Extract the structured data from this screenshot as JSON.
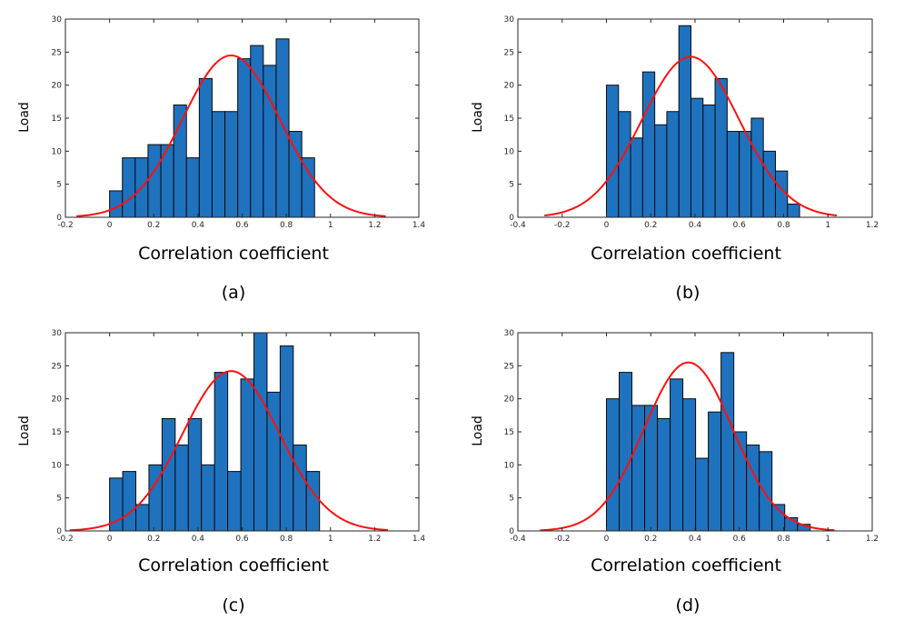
{
  "style": {
    "bar_color": "#1f72be",
    "bar_edge": "#0a0a0a",
    "curve_color": "#ff1010",
    "axis_color": "#262626"
  },
  "chart_data": [
    {
      "type": "bar",
      "panel_label": "(a)",
      "xlabel": "Correlation coefficient",
      "ylabel": "Load",
      "xlim": [
        -0.2,
        1.4
      ],
      "ylim": [
        0,
        30
      ],
      "xticks": [
        -0.2,
        0,
        0.2,
        0.4,
        0.6,
        0.8,
        1,
        1.2,
        1.4
      ],
      "yticks": [
        0,
        5,
        10,
        15,
        20,
        25,
        30
      ],
      "bin_start": 0.0,
      "bin_width": 0.058,
      "values": [
        4,
        9,
        9,
        11,
        11,
        17,
        9,
        21,
        16,
        16,
        24,
        26,
        23,
        27,
        13,
        9
      ],
      "fit": {
        "type": "normal",
        "mean": 0.55,
        "std": 0.22,
        "peak": 24.5,
        "xrange": [
          -0.15,
          1.25
        ]
      }
    },
    {
      "type": "bar",
      "panel_label": "(b)",
      "xlabel": "Correlation coefficient",
      "ylabel": "Load",
      "xlim": [
        -0.4,
        1.2
      ],
      "ylim": [
        0,
        30
      ],
      "xticks": [
        -0.4,
        -0.2,
        0,
        0.2,
        0.4,
        0.6,
        0.8,
        1,
        1.2
      ],
      "yticks": [
        0,
        5,
        10,
        15,
        20,
        25,
        30
      ],
      "bin_start": 0.0,
      "bin_width": 0.0545,
      "values": [
        20,
        16,
        12,
        22,
        14,
        16,
        29,
        18,
        17,
        21,
        13,
        13,
        15,
        10,
        7,
        2
      ],
      "fit": {
        "type": "normal",
        "mean": 0.38,
        "std": 0.22,
        "peak": 24.3,
        "xrange": [
          -0.28,
          1.04
        ]
      }
    },
    {
      "type": "bar",
      "panel_label": "(c)",
      "xlabel": "Correlation coefficient",
      "ylabel": "Load",
      "xlim": [
        -0.2,
        1.4
      ],
      "ylim": [
        0,
        30
      ],
      "xticks": [
        -0.2,
        0,
        0.2,
        0.4,
        0.6,
        0.8,
        1,
        1.2,
        1.4
      ],
      "yticks": [
        0,
        5,
        10,
        15,
        20,
        25,
        30
      ],
      "bin_start": 0.0,
      "bin_width": 0.0594,
      "values": [
        8,
        9,
        4,
        10,
        17,
        13,
        17,
        10,
        24,
        9,
        23,
        30,
        21,
        28,
        13,
        9
      ],
      "fit": {
        "type": "normal",
        "mean": 0.55,
        "std": 0.22,
        "peak": 24.2,
        "xrange": [
          -0.18,
          1.26
        ]
      }
    },
    {
      "type": "bar",
      "panel_label": "(d)",
      "xlabel": "Correlation coefficient",
      "ylabel": "Load",
      "xlim": [
        -0.4,
        1.2
      ],
      "ylim": [
        0,
        30
      ],
      "xticks": [
        -0.4,
        -0.2,
        0,
        0.2,
        0.4,
        0.6,
        0.8,
        1,
        1.2
      ],
      "yticks": [
        0,
        5,
        10,
        15,
        20,
        25,
        30
      ],
      "bin_start": 0.0,
      "bin_width": 0.0575,
      "values": [
        20,
        24,
        19,
        19,
        17,
        23,
        20,
        11,
        18,
        27,
        15,
        13,
        12,
        4,
        2,
        1
      ],
      "fit": {
        "type": "normal",
        "mean": 0.37,
        "std": 0.2,
        "peak": 25.5,
        "xrange": [
          -0.3,
          1.03
        ]
      }
    }
  ]
}
